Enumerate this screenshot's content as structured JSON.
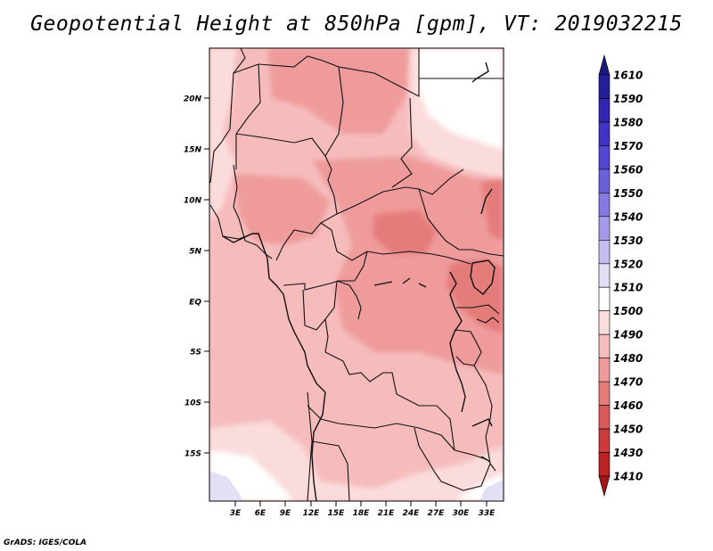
{
  "title": "Geopotential Height at 850hPa [gpm], VT: 2019032215",
  "credit": "GrADS: IGES/COLA",
  "map": {
    "lat_labels": [
      "20N",
      "15N",
      "10N",
      "5N",
      "EQ",
      "5S",
      "10S",
      "15S"
    ],
    "lon_labels": [
      "3E",
      "6E",
      "9E",
      "12E",
      "15E",
      "18E",
      "21E",
      "24E",
      "27E",
      "30E",
      "33E"
    ]
  },
  "colorbar": {
    "labels": [
      "1610",
      "1590",
      "1580",
      "1570",
      "1560",
      "1550",
      "1540",
      "1530",
      "1520",
      "1510",
      "1500",
      "1490",
      "1480",
      "1470",
      "1460",
      "1450",
      "1430",
      "1410"
    ],
    "colors": [
      "#1c1880",
      "#231f99",
      "#3026b0",
      "#4034c4",
      "#5446d2",
      "#6a5ed9",
      "#8479e0",
      "#a39be8",
      "#c3beef",
      "#e3e0f6",
      "#ffffff",
      "#fbdcdc",
      "#f6bcbc",
      "#ef9b9b",
      "#e57b7b",
      "#da5a5a",
      "#cc3b3b",
      "#bb2424",
      "#a21616"
    ]
  }
}
